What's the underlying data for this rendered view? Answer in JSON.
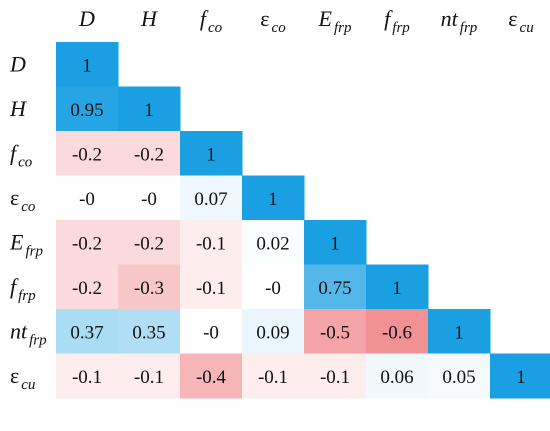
{
  "chart_data": {
    "type": "heatmap",
    "title": "",
    "variables": [
      {
        "base": "D",
        "sub": ""
      },
      {
        "base": "H",
        "sub": ""
      },
      {
        "base": "f",
        "sub": "co"
      },
      {
        "base": "ε",
        "sub": "co"
      },
      {
        "base": "E",
        "sub": "frp"
      },
      {
        "base": "f",
        "sub": "frp"
      },
      {
        "base": "nt",
        "sub": "frp"
      },
      {
        "base": "ε",
        "sub": "cu"
      }
    ],
    "matrix": [
      [
        "1"
      ],
      [
        "0.95",
        "1"
      ],
      [
        "-0.2",
        "-0.2",
        "1"
      ],
      [
        "-0",
        "-0",
        "0.07",
        "1"
      ],
      [
        "-0.2",
        "-0.2",
        "-0.1",
        "0.02",
        "1"
      ],
      [
        "-0.2",
        "-0.3",
        "-0.1",
        "-0",
        "0.75",
        "1"
      ],
      [
        "0.37",
        "0.35",
        "-0",
        "0.09",
        "-0.5",
        "-0.6",
        "1"
      ],
      [
        "-0.1",
        "-0.1",
        "-0.4",
        "-0.1",
        "-0.1",
        "0.06",
        "0.05",
        "1"
      ]
    ],
    "lower_triangle": true,
    "color_scale": {
      "negative": "#e8474c",
      "zero": "#ffffff",
      "positive": "#1aa0e2",
      "range": [
        -1,
        1
      ]
    },
    "legend": "none",
    "grid": false
  }
}
